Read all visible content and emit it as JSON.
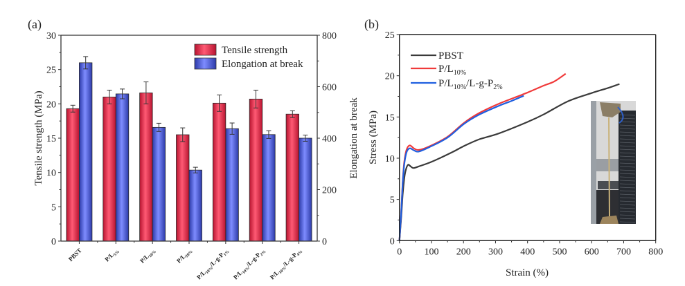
{
  "chart_data": [
    {
      "panel_label": "(a)",
      "type": "bar",
      "title": "",
      "xlabel": "",
      "ylabel": "Tensile strength (MPa)",
      "y2label": "Elongation at break",
      "ylim": [
        0,
        30
      ],
      "y2lim": [
        0,
        800
      ],
      "yticks": [
        0,
        5,
        10,
        15,
        20,
        25,
        30
      ],
      "y2ticks": [
        0,
        200,
        400,
        600,
        800
      ],
      "legend_position": "top-right",
      "categories": [
        {
          "main": "PBST",
          "sub": "",
          "tail": "",
          "tailsub": ""
        },
        {
          "main": "P/L",
          "sub": "5%",
          "tail": "",
          "tailsub": ""
        },
        {
          "main": "P/L",
          "sub": "10%",
          "tail": "",
          "tailsub": ""
        },
        {
          "main": "P/L",
          "sub": "20%",
          "tail": "",
          "tailsub": ""
        },
        {
          "main": "P/L",
          "sub": "10%",
          "tail": "/L-g-P",
          "tailsub": "1%"
        },
        {
          "main": "P/L",
          "sub": "10%",
          "tail": "/L-g-P",
          "tailsub": "2%"
        },
        {
          "main": "P/L",
          "sub": "10%",
          "tail": "/L-g-P",
          "tailsub": "4%"
        }
      ],
      "category_names": [
        "PBST",
        "P/L5%",
        "P/L10%",
        "P/L20%",
        "P/L10%/L-g-P1%",
        "P/L10%/L-g-P2%",
        "P/L10%/L-g-P4%"
      ],
      "series": [
        {
          "name": "Tensile strength",
          "axis": "left",
          "color": "#e8324f",
          "values": [
            19.3,
            21.0,
            21.6,
            15.5,
            20.1,
            20.7,
            18.5
          ],
          "errors": [
            0.5,
            1.0,
            1.6,
            1.0,
            1.2,
            1.3,
            0.5
          ]
        },
        {
          "name": "Elongation at break",
          "axis": "right",
          "color": "#5a6cf0",
          "values": [
            693,
            572,
            442,
            276,
            437,
            414,
            400
          ],
          "errors": [
            24,
            19,
            16,
            11,
            22,
            15,
            12
          ]
        }
      ]
    },
    {
      "panel_label": "(b)",
      "type": "line",
      "title": "",
      "xlabel": "Strain (%)",
      "ylabel": "Stress (MPa)",
      "xlim": [
        0,
        800
      ],
      "ylim": [
        0,
        25
      ],
      "xticks": [
        0,
        100,
        200,
        300,
        400,
        500,
        600,
        700,
        800
      ],
      "yticks": [
        0,
        5,
        10,
        15,
        20,
        25
      ],
      "legend_position": "top-left",
      "inset": "photo of tensile testing specimen in testing machine",
      "series": [
        {
          "name": "PBST",
          "label_main": "PBST",
          "label_sub": "",
          "label_tail": "",
          "label_tailsub": "",
          "color": "#3a3a3a",
          "points": [
            [
              0,
              0
            ],
            [
              5,
              2.5
            ],
            [
              10,
              5.5
            ],
            [
              15,
              7.5
            ],
            [
              20,
              8.6
            ],
            [
              27,
              9.2
            ],
            [
              35,
              9.0
            ],
            [
              44,
              8.8
            ],
            [
              60,
              9.0
            ],
            [
              100,
              9.55
            ],
            [
              166,
              10.75
            ],
            [
              200,
              11.45
            ],
            [
              250,
              12.3
            ],
            [
              310,
              13.0
            ],
            [
              400,
              14.4
            ],
            [
              450,
              15.3
            ],
            [
              526,
              16.9
            ],
            [
              600,
              17.9
            ],
            [
              650,
              18.5
            ],
            [
              687,
              19.0
            ]
          ]
        },
        {
          "name": "P/L10%",
          "label_main": "P/L",
          "label_sub": "10%",
          "label_tail": "",
          "label_tailsub": "",
          "color": "#f03a3a",
          "points": [
            [
              0,
              0
            ],
            [
              5,
              3
            ],
            [
              10,
              7
            ],
            [
              15,
              9.5
            ],
            [
              22,
              11.0
            ],
            [
              32,
              11.55
            ],
            [
              45,
              11.2
            ],
            [
              60,
              11.0
            ],
            [
              94,
              11.45
            ],
            [
              150,
              12.6
            ],
            [
              202,
              14.3
            ],
            [
              250,
              15.5
            ],
            [
              310,
              16.6
            ],
            [
              396,
              17.9
            ],
            [
              450,
              18.8
            ],
            [
              483,
              19.3
            ],
            [
              519,
              20.25
            ]
          ]
        },
        {
          "name": "P/L10%/L-g-P2%",
          "label_main": "P/L",
          "label_sub": "10%",
          "label_tail": "/L-g-P",
          "label_tailsub": "2%",
          "color": "#1f5fe0",
          "points": [
            [
              0,
              0
            ],
            [
              5,
              3
            ],
            [
              10,
              6.8
            ],
            [
              15,
              9.2
            ],
            [
              22,
              10.7
            ],
            [
              32,
              11.2
            ],
            [
              45,
              10.95
            ],
            [
              60,
              10.8
            ],
            [
              94,
              11.35
            ],
            [
              150,
              12.5
            ],
            [
              202,
              14.17
            ],
            [
              250,
              15.3
            ],
            [
              310,
              16.35
            ],
            [
              350,
              16.95
            ],
            [
              388,
              17.57
            ]
          ]
        }
      ]
    }
  ]
}
